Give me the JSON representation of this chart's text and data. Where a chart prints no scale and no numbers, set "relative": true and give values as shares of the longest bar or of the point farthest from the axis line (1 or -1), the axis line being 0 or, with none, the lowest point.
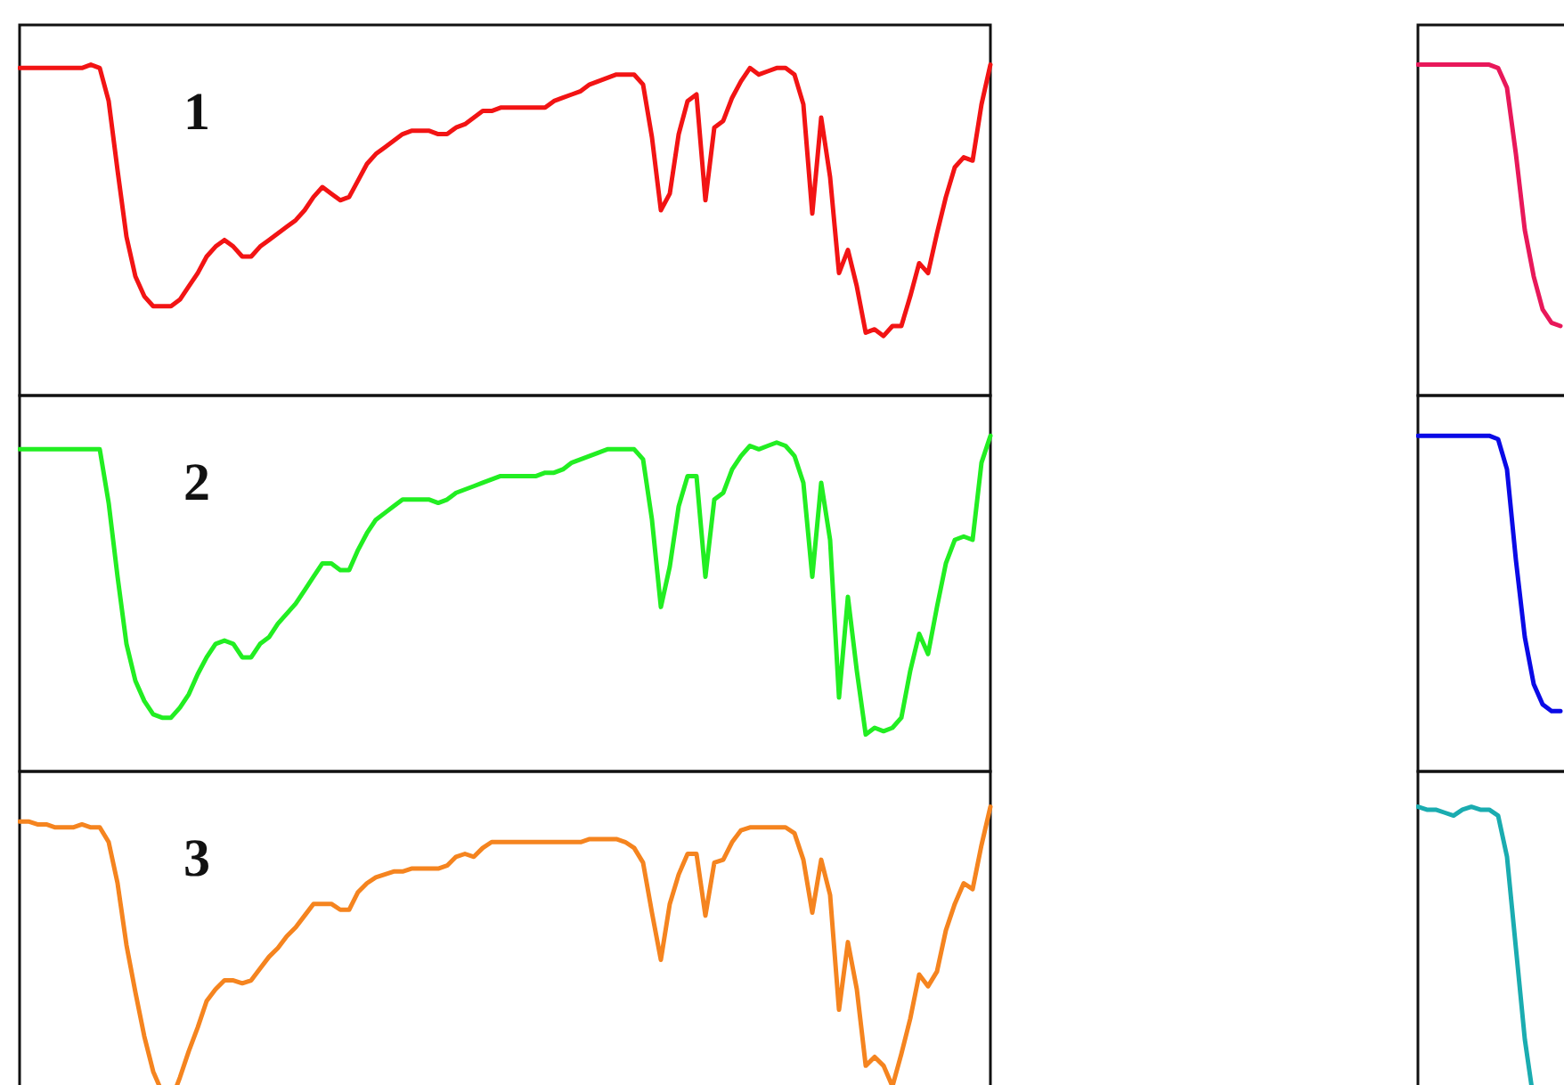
{
  "chart_data": [
    {
      "type": "line",
      "title": "1",
      "relative": true,
      "color": "#f21414",
      "categories": [
        null,
        null,
        null,
        null,
        null,
        null,
        null,
        null,
        null,
        null,
        null,
        null,
        null,
        null,
        null,
        null,
        null,
        null,
        null,
        null,
        null,
        null,
        null,
        null,
        null,
        null,
        null,
        null,
        null,
        null,
        null,
        null,
        null,
        null,
        null,
        null,
        null,
        null,
        null,
        null,
        null,
        null,
        null,
        null,
        null,
        null,
        null,
        null,
        null,
        null,
        null,
        null,
        null,
        null,
        null,
        null,
        null,
        null,
        null,
        null,
        null,
        null,
        null,
        null,
        null,
        null,
        null,
        null,
        null,
        null,
        null,
        null,
        null,
        null,
        null,
        null,
        null,
        null,
        null,
        null,
        null,
        null,
        null,
        null,
        null,
        null,
        null,
        null,
        null,
        null,
        null,
        null,
        null,
        null,
        null,
        null,
        null,
        null,
        null,
        null,
        null,
        null,
        null,
        null,
        null,
        null,
        null,
        null,
        null,
        null
      ],
      "values": [
        0.99,
        0.99,
        0.99,
        0.99,
        0.99,
        0.99,
        0.99,
        0.99,
        1.0,
        0.99,
        0.89,
        0.68,
        0.48,
        0.36,
        0.3,
        0.27,
        0.27,
        0.27,
        0.29,
        0.33,
        0.37,
        0.42,
        0.45,
        0.47,
        0.45,
        0.42,
        0.42,
        0.45,
        0.47,
        0.49,
        0.51,
        0.53,
        0.56,
        0.6,
        0.63,
        0.61,
        0.59,
        0.6,
        0.65,
        0.7,
        0.73,
        0.75,
        0.77,
        0.79,
        0.8,
        0.8,
        0.8,
        0.79,
        0.79,
        0.81,
        0.82,
        0.84,
        0.86,
        0.86,
        0.87,
        0.87,
        0.87,
        0.87,
        0.87,
        0.87,
        0.89,
        0.9,
        0.91,
        0.92,
        0.94,
        0.95,
        0.96,
        0.97,
        0.97,
        0.97,
        0.94,
        0.78,
        0.56,
        0.61,
        0.79,
        0.89,
        0.91,
        0.59,
        0.81,
        0.83,
        0.9,
        0.95,
        0.99,
        0.97,
        0.98,
        0.99,
        0.99,
        0.97,
        0.88,
        0.55,
        0.84,
        0.66,
        0.37,
        0.44,
        0.33,
        0.19,
        0.2,
        0.18,
        0.21,
        0.21,
        0.3,
        0.4,
        0.37,
        0.49,
        0.6,
        0.69,
        0.72,
        0.71,
        0.88,
        1.0
      ]
    },
    {
      "type": "line",
      "relative": true,
      "color": "#e8185a",
      "categories": [
        null,
        null,
        null,
        null,
        null,
        null,
        null,
        null,
        null,
        null,
        null,
        null,
        null,
        null,
        null,
        null,
        null
      ],
      "values": [
        1.0,
        1.0,
        1.0,
        1.0,
        1.0,
        1.0,
        1.0,
        1.0,
        1.0,
        0.99,
        0.93,
        0.73,
        0.5,
        0.36,
        0.26,
        0.22,
        0.21
      ]
    },
    {
      "type": "line",
      "title": "2",
      "relative": true,
      "color": "#22ee22",
      "categories": [
        null,
        null,
        null,
        null,
        null,
        null,
        null,
        null,
        null,
        null,
        null,
        null,
        null,
        null,
        null,
        null,
        null,
        null,
        null,
        null,
        null,
        null,
        null,
        null,
        null,
        null,
        null,
        null,
        null,
        null,
        null,
        null,
        null,
        null,
        null,
        null,
        null,
        null,
        null,
        null,
        null,
        null,
        null,
        null,
        null,
        null,
        null,
        null,
        null,
        null,
        null,
        null,
        null,
        null,
        null,
        null,
        null,
        null,
        null,
        null,
        null,
        null,
        null,
        null,
        null,
        null,
        null,
        null,
        null,
        null,
        null,
        null,
        null,
        null,
        null,
        null,
        null,
        null,
        null,
        null,
        null,
        null,
        null,
        null,
        null,
        null,
        null,
        null,
        null,
        null,
        null,
        null,
        null,
        null,
        null,
        null,
        null,
        null,
        null,
        null,
        null,
        null,
        null,
        null,
        null,
        null,
        null,
        null,
        null,
        null
      ],
      "values": [
        0.96,
        0.96,
        0.96,
        0.96,
        0.96,
        0.96,
        0.96,
        0.96,
        0.96,
        0.96,
        0.8,
        0.58,
        0.38,
        0.27,
        0.21,
        0.17,
        0.16,
        0.16,
        0.19,
        0.23,
        0.29,
        0.34,
        0.38,
        0.39,
        0.38,
        0.34,
        0.34,
        0.38,
        0.4,
        0.44,
        0.47,
        0.5,
        0.54,
        0.58,
        0.62,
        0.62,
        0.6,
        0.6,
        0.66,
        0.71,
        0.75,
        0.77,
        0.79,
        0.81,
        0.81,
        0.81,
        0.81,
        0.8,
        0.81,
        0.83,
        0.84,
        0.85,
        0.86,
        0.87,
        0.88,
        0.88,
        0.88,
        0.88,
        0.88,
        0.89,
        0.89,
        0.9,
        0.92,
        0.93,
        0.94,
        0.95,
        0.96,
        0.96,
        0.96,
        0.96,
        0.93,
        0.75,
        0.49,
        0.61,
        0.79,
        0.88,
        0.88,
        0.58,
        0.81,
        0.83,
        0.9,
        0.94,
        0.97,
        0.96,
        0.97,
        0.98,
        0.97,
        0.94,
        0.86,
        0.58,
        0.86,
        0.69,
        0.22,
        0.52,
        0.3,
        0.11,
        0.13,
        0.12,
        0.13,
        0.16,
        0.3,
        0.41,
        0.35,
        0.49,
        0.62,
        0.69,
        0.7,
        0.69,
        0.92,
        1.0
      ]
    },
    {
      "type": "line",
      "relative": true,
      "color": "#0a0ae6",
      "categories": [
        null,
        null,
        null,
        null,
        null,
        null,
        null,
        null,
        null,
        null,
        null,
        null,
        null,
        null,
        null,
        null,
        null
      ],
      "values": [
        1.0,
        1.0,
        1.0,
        1.0,
        1.0,
        1.0,
        1.0,
        1.0,
        1.0,
        0.99,
        0.9,
        0.63,
        0.4,
        0.26,
        0.2,
        0.18,
        0.18
      ]
    },
    {
      "type": "line",
      "title": "3",
      "relative": true,
      "color": "#f5841f",
      "categories": [
        null,
        null,
        null,
        null,
        null,
        null,
        null,
        null,
        null,
        null,
        null,
        null,
        null,
        null,
        null,
        null,
        null,
        null,
        null,
        null,
        null,
        null,
        null,
        null,
        null,
        null,
        null,
        null,
        null,
        null,
        null,
        null,
        null,
        null,
        null,
        null,
        null,
        null,
        null,
        null,
        null,
        null,
        null,
        null,
        null,
        null,
        null,
        null,
        null,
        null,
        null,
        null,
        null,
        null,
        null,
        null,
        null,
        null,
        null,
        null,
        null,
        null,
        null,
        null,
        null,
        null,
        null,
        null,
        null,
        null,
        null,
        null,
        null,
        null,
        null,
        null,
        null,
        null,
        null,
        null,
        null,
        null,
        null,
        null,
        null,
        null,
        null,
        null,
        null,
        null,
        null,
        null,
        null,
        null,
        null,
        null,
        null,
        null,
        null,
        null,
        null,
        null,
        null,
        null,
        null,
        null,
        null,
        null,
        null,
        null
      ],
      "values": [
        0.95,
        0.95,
        0.94,
        0.94,
        0.93,
        0.93,
        0.93,
        0.94,
        0.93,
        0.93,
        0.88,
        0.74,
        0.53,
        0.37,
        0.22,
        0.1,
        0.03,
        0.0,
        0.08,
        0.17,
        0.25,
        0.34,
        0.38,
        0.41,
        0.41,
        0.4,
        0.41,
        0.45,
        0.49,
        0.52,
        0.56,
        0.59,
        0.63,
        0.67,
        0.67,
        0.67,
        0.65,
        0.65,
        0.71,
        0.74,
        0.76,
        0.77,
        0.78,
        0.78,
        0.79,
        0.79,
        0.79,
        0.79,
        0.8,
        0.83,
        0.84,
        0.83,
        0.86,
        0.88,
        0.88,
        0.88,
        0.88,
        0.88,
        0.88,
        0.88,
        0.88,
        0.88,
        0.88,
        0.88,
        0.89,
        0.89,
        0.89,
        0.89,
        0.88,
        0.86,
        0.81,
        0.64,
        0.48,
        0.67,
        0.77,
        0.84,
        0.84,
        0.63,
        0.81,
        0.82,
        0.88,
        0.92,
        0.93,
        0.93,
        0.93,
        0.93,
        0.93,
        0.91,
        0.82,
        0.64,
        0.82,
        0.7,
        0.31,
        0.54,
        0.38,
        0.12,
        0.15,
        0.12,
        0.05,
        0.16,
        0.28,
        0.43,
        0.39,
        0.44,
        0.58,
        0.67,
        0.74,
        0.72,
        0.87,
        1.0
      ]
    },
    {
      "type": "line",
      "relative": true,
      "color": "#1aacb0",
      "categories": [
        null,
        null,
        null,
        null,
        null,
        null,
        null,
        null,
        null,
        null,
        null,
        null,
        null,
        null,
        null,
        null,
        null
      ],
      "values": [
        1.0,
        0.99,
        0.99,
        0.98,
        0.97,
        0.99,
        1.0,
        0.99,
        0.99,
        0.97,
        0.83,
        0.52,
        0.21,
        0.0,
        null,
        null,
        null
      ]
    }
  ]
}
